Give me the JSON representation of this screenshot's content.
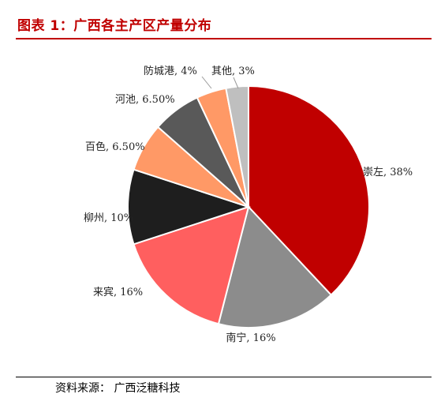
{
  "header": {
    "title": "图表 1：广西各主产区产量分布"
  },
  "footer": {
    "source": "资料来源： 广西泛糖科技"
  },
  "chart_data": {
    "type": "pie",
    "title": "图表 1：广西各主产区产量分布",
    "slices": [
      {
        "label": "崇左, 38%",
        "value": 38,
        "color": "#c00000"
      },
      {
        "label": "南宁, 16%",
        "value": 16,
        "color": "#8c8c8c"
      },
      {
        "label": "来宾, 16%",
        "value": 16,
        "color": "#ff5f5f"
      },
      {
        "label": "柳州, 10%",
        "value": 10,
        "color": "#1e1e1e"
      },
      {
        "label": "百色, 6.50%",
        "value": 6.5,
        "color": "#ff9966"
      },
      {
        "label": "河池, 6.50%",
        "value": 6.5,
        "color": "#595959"
      },
      {
        "label": "防城港, 4%",
        "value": 4,
        "color": "#ff9966"
      },
      {
        "label": "其他, 3%",
        "value": 3,
        "color": "#bfbfbf"
      }
    ],
    "start": "12 o'clock",
    "direction": "clockwise"
  }
}
